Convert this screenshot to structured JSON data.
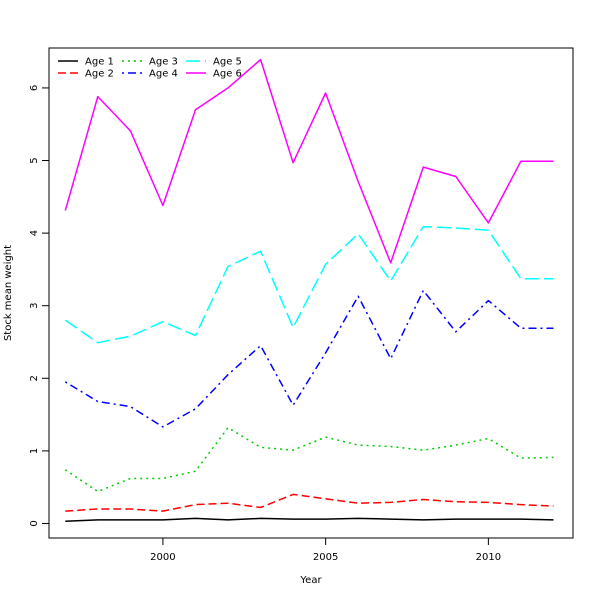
{
  "chart_data": {
    "type": "line",
    "title": "",
    "xlabel": "Year",
    "ylabel": "Stock mean weight",
    "x": [
      1997,
      1998,
      1999,
      2000,
      2001,
      2002,
      2003,
      2004,
      2005,
      2006,
      2007,
      2008,
      2009,
      2010,
      2011,
      2012
    ],
    "xlim": [
      1996.5,
      2012.6
    ],
    "ylim": [
      -0.2,
      6.55
    ],
    "xticks": [
      2000,
      2005,
      2010
    ],
    "yticks": [
      0,
      1,
      2,
      3,
      4,
      5,
      6
    ],
    "grid": false,
    "legend_position": "top-left",
    "series": [
      {
        "name": "Age 1",
        "color": "#000000",
        "dash": "solid",
        "values": [
          0.03,
          0.05,
          0.05,
          0.05,
          0.07,
          0.05,
          0.07,
          0.06,
          0.06,
          0.07,
          0.06,
          0.05,
          0.06,
          0.06,
          0.06,
          0.05
        ]
      },
      {
        "name": "Age 2",
        "color": "#ff0000",
        "dash": "dashed",
        "values": [
          0.17,
          0.2,
          0.2,
          0.17,
          0.26,
          0.28,
          0.22,
          0.4,
          0.34,
          0.28,
          0.29,
          0.33,
          0.3,
          0.29,
          0.26,
          0.24
        ]
      },
      {
        "name": "Age 3",
        "color": "#00cd00",
        "dash": "dotted",
        "values": [
          0.74,
          0.44,
          0.62,
          0.62,
          0.72,
          1.32,
          1.05,
          1.01,
          1.19,
          1.08,
          1.06,
          1.01,
          1.08,
          1.17,
          0.9,
          0.91
        ]
      },
      {
        "name": "Age 4",
        "color": "#0000ff",
        "dash": "dotdash",
        "values": [
          1.95,
          1.68,
          1.61,
          1.33,
          1.58,
          2.05,
          2.45,
          1.63,
          2.35,
          3.13,
          2.27,
          3.21,
          2.64,
          3.07,
          2.69,
          2.69
        ]
      },
      {
        "name": "Age 5",
        "color": "#00ffff",
        "dash": "longdash",
        "values": [
          2.8,
          2.49,
          2.58,
          2.78,
          2.59,
          3.54,
          3.75,
          2.7,
          3.57,
          3.99,
          3.34,
          4.09,
          4.07,
          4.04,
          3.37,
          3.37
        ]
      },
      {
        "name": "Age 6",
        "color": "#ff00ff",
        "dash": "solid",
        "values": [
          4.31,
          5.88,
          5.41,
          4.38,
          5.7,
          6.0,
          6.39,
          4.97,
          5.93,
          4.71,
          3.59,
          4.91,
          4.78,
          4.14,
          4.99,
          4.99
        ]
      }
    ]
  }
}
